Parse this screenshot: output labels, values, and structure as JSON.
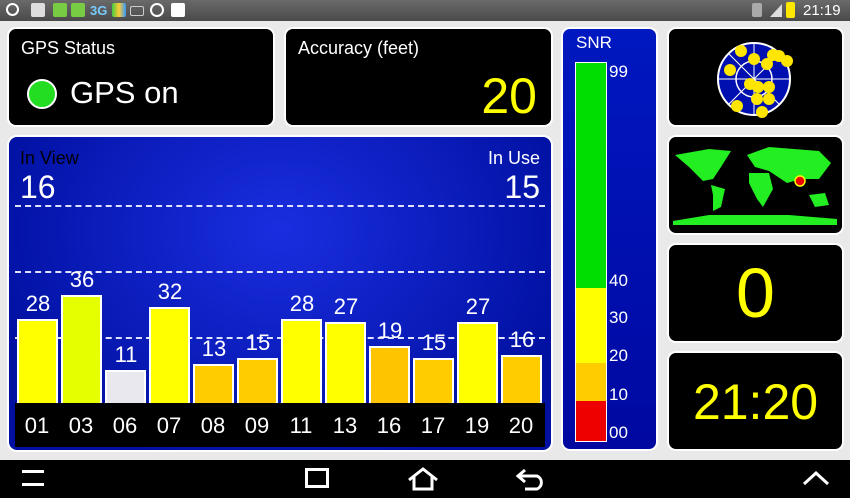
{
  "status_bar": {
    "time": "21:19",
    "left_icons": [
      "gps-icon",
      "gallery-icon",
      "message-icon",
      "message-icon",
      "3g-icon",
      "app-icon",
      "mail-icon",
      "do-not-disturb-icon",
      "clipboard-icon"
    ],
    "right_icons": [
      "wifi-icon",
      "signal-icon",
      "battery-icon"
    ]
  },
  "gps_status": {
    "title": "GPS Status",
    "value": "GPS on",
    "indicator_color": "#22dd22"
  },
  "accuracy": {
    "title": "Accuracy (feet)",
    "value": "20"
  },
  "satellites": {
    "in_view_label": "In View",
    "in_view": "16",
    "in_use_label": "In Use",
    "in_use": "15"
  },
  "chart_data": {
    "type": "bar",
    "categories": [
      "01",
      "03",
      "06",
      "07",
      "08",
      "09",
      "11",
      "13",
      "16",
      "17",
      "19",
      "20"
    ],
    "values": [
      28,
      36,
      11,
      32,
      13,
      15,
      28,
      27,
      19,
      15,
      27,
      16
    ],
    "colors": [
      "#ffff00",
      "#e5ff00",
      "#e8e8ee",
      "#ffff00",
      "#ffcc00",
      "#ffcc00",
      "#ffff00",
      "#ffff00",
      "#ffc400",
      "#ffcc00",
      "#ffff00",
      "#ffcc00"
    ],
    "ylim": [
      0,
      99
    ],
    "grid": "dashed"
  },
  "snr": {
    "title": "SNR",
    "labels": [
      "99",
      "40",
      "30",
      "20",
      "10",
      "00"
    ],
    "colors": {
      "green": "#00dd00",
      "yellow": "#ffff00",
      "orange": "#ffcc00",
      "red": "#ee0000"
    }
  },
  "right": {
    "speed": "0",
    "time": "21:20"
  },
  "nav": {
    "icons": [
      "menu-icon",
      "recent-apps-icon",
      "home-icon",
      "back-icon",
      "chevron-up-icon"
    ]
  }
}
